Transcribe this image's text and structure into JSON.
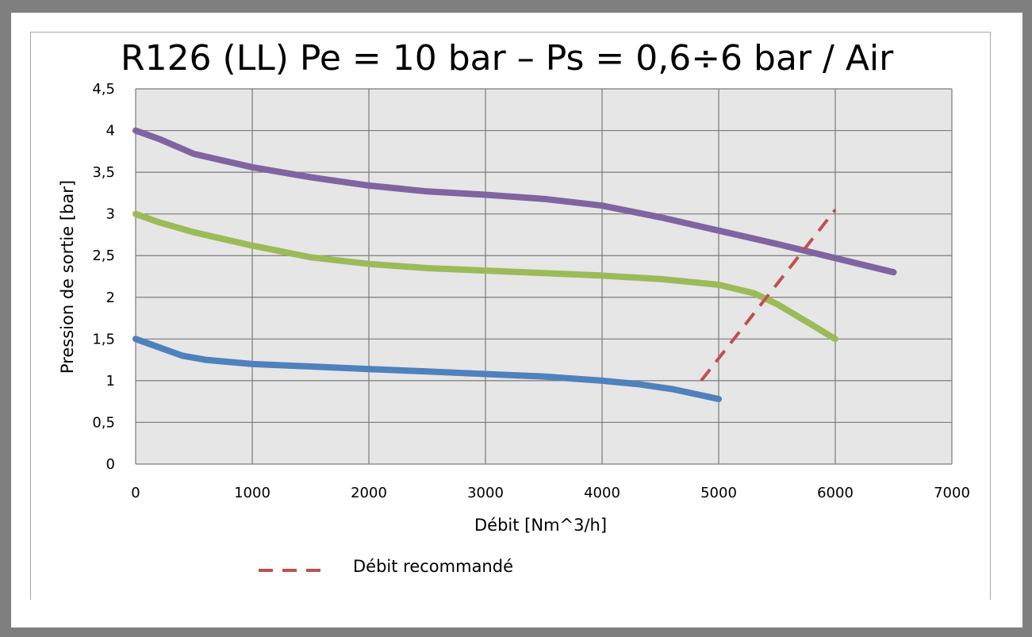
{
  "chart_data": {
    "type": "line",
    "title": "R126 (LL) Pe = 10 bar – Ps = 0,6÷6 bar / Air",
    "xlabel": "Débit [Nm^3/h]",
    "ylabel": "Pression de sortie [bar]",
    "xlim": [
      0,
      7000
    ],
    "ylim": [
      0,
      4.5
    ],
    "x_ticks": [
      "0",
      "1000",
      "2000",
      "3000",
      "4000",
      "5000",
      "6000",
      "7000"
    ],
    "y_ticks": [
      "0",
      "0,5",
      "1",
      "1,5",
      "2",
      "2,5",
      "3",
      "3,5",
      "4",
      "4,5"
    ],
    "grid": true,
    "plot_background": "#e6e6e6",
    "series": [
      {
        "color": "#8064a2",
        "points": [
          [
            0,
            4.0
          ],
          [
            200,
            3.9
          ],
          [
            500,
            3.72
          ],
          [
            1000,
            3.56
          ],
          [
            1500,
            3.44
          ],
          [
            2000,
            3.34
          ],
          [
            2500,
            3.27
          ],
          [
            3000,
            3.23
          ],
          [
            3500,
            3.18
          ],
          [
            4000,
            3.1
          ],
          [
            4500,
            2.96
          ],
          [
            5000,
            2.8
          ],
          [
            5500,
            2.64
          ],
          [
            6000,
            2.47
          ],
          [
            6500,
            2.3
          ]
        ]
      },
      {
        "color": "#9bbb59",
        "points": [
          [
            0,
            3.0
          ],
          [
            200,
            2.9
          ],
          [
            500,
            2.78
          ],
          [
            1000,
            2.62
          ],
          [
            1500,
            2.48
          ],
          [
            2000,
            2.4
          ],
          [
            2500,
            2.35
          ],
          [
            3000,
            2.32
          ],
          [
            3500,
            2.29
          ],
          [
            4000,
            2.26
          ],
          [
            4500,
            2.22
          ],
          [
            5000,
            2.15
          ],
          [
            5300,
            2.05
          ],
          [
            5500,
            1.92
          ],
          [
            5800,
            1.67
          ],
          [
            6000,
            1.5
          ]
        ]
      },
      {
        "color": "#4f81bd",
        "points": [
          [
            0,
            1.5
          ],
          [
            200,
            1.4
          ],
          [
            400,
            1.3
          ],
          [
            600,
            1.25
          ],
          [
            1000,
            1.2
          ],
          [
            1500,
            1.17
          ],
          [
            2000,
            1.14
          ],
          [
            2500,
            1.11
          ],
          [
            3000,
            1.08
          ],
          [
            3500,
            1.05
          ],
          [
            4000,
            1.0
          ],
          [
            4300,
            0.96
          ],
          [
            4600,
            0.9
          ],
          [
            5000,
            0.78
          ]
        ]
      }
    ],
    "recommended_flow_line": {
      "name": "Débit recommandé",
      "color": "#c0504d",
      "style": "dashed",
      "points": [
        [
          4850,
          1.0
        ],
        [
          6000,
          3.05
        ]
      ]
    },
    "legend": {
      "position": "bottom",
      "entries": [
        "Débit recommandé"
      ]
    }
  }
}
